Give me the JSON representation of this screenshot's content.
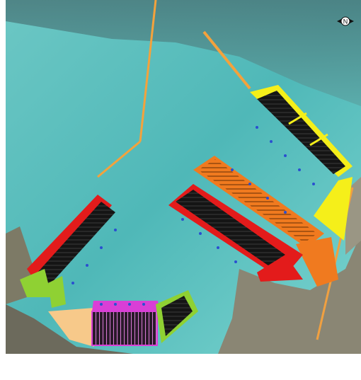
{
  "map": {
    "type": "port master plan over satellite imagery",
    "compass_label": "N",
    "colors": {
      "sea_light": "#5fc8c6",
      "sea_deep": "#3a7f86",
      "land": "#8b8a78",
      "container_berths": "#1a1a1a",
      "yard_orange": "#f07a1f",
      "yard_yellow": "#f5ef1a",
      "zone_red": "#e31b1b",
      "zone_green": "#8fd133",
      "zone_tan": "#f7c98a",
      "zone_magenta": "#d93fd6",
      "cranes_blue": "#2a4fd0",
      "breakwater_outline": "#f4a23c"
    },
    "areas": [
      {
        "id": "east-terminal",
        "color_key": "yard_yellow"
      },
      {
        "id": "middle-terminal",
        "color_key": "yard_orange"
      },
      {
        "id": "central-pier",
        "color_key": "zone_red"
      },
      {
        "id": "west-terminal",
        "color_key": "zone_green"
      },
      {
        "id": "south-basin-terminal",
        "color_key": "zone_magenta"
      },
      {
        "id": "south-small-terminal",
        "color_key": "zone_green"
      }
    ]
  }
}
